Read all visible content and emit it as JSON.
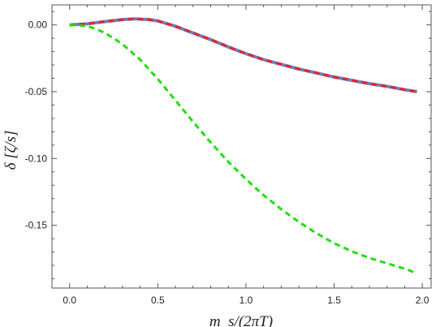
{
  "chart_data": {
    "type": "line",
    "title": "",
    "xlabel": "m_s/(2πT)",
    "ylabel": "δ [ζ/s]",
    "xlim": [
      -0.1,
      2.05
    ],
    "ylim": [
      -0.197,
      0.015
    ],
    "x_ticks": [
      0.0,
      0.5,
      1.0,
      1.5,
      2.0
    ],
    "x_tick_labels": [
      "0.0",
      "0.5",
      "1.0",
      "1.5",
      "2.0"
    ],
    "y_ticks": [
      0.0,
      -0.05,
      -0.1,
      -0.15
    ],
    "y_tick_labels": [
      "0.00",
      "-0.05",
      "-0.10",
      "-0.15"
    ],
    "grid": false,
    "series": [
      {
        "style": "solid",
        "color": "#6f7fbf",
        "x": [
          0.0,
          0.1,
          0.2,
          0.3,
          0.37,
          0.45,
          0.5,
          0.6,
          0.7,
          0.8,
          0.9,
          1.0,
          1.1,
          1.2,
          1.3,
          1.4,
          1.5,
          1.6,
          1.7,
          1.8,
          1.9,
          1.97
        ],
        "y": [
          0.0,
          0.0008,
          0.0025,
          0.004,
          0.0045,
          0.004,
          0.003,
          -0.001,
          -0.006,
          -0.011,
          -0.0165,
          -0.0215,
          -0.026,
          -0.0295,
          -0.033,
          -0.036,
          -0.039,
          -0.0415,
          -0.044,
          -0.046,
          -0.0485,
          -0.05
        ]
      },
      {
        "style": "dashed",
        "color": "#e8232a",
        "x": [
          0.0,
          0.1,
          0.2,
          0.3,
          0.37,
          0.45,
          0.5,
          0.6,
          0.7,
          0.8,
          0.9,
          1.0,
          1.1,
          1.2,
          1.3,
          1.4,
          1.5,
          1.6,
          1.7,
          1.8,
          1.9,
          1.97
        ],
        "y": [
          0.0,
          0.0008,
          0.0025,
          0.004,
          0.0045,
          0.004,
          0.003,
          -0.001,
          -0.006,
          -0.011,
          -0.0165,
          -0.0215,
          -0.026,
          -0.0295,
          -0.033,
          -0.036,
          -0.039,
          -0.0415,
          -0.044,
          -0.046,
          -0.0485,
          -0.05
        ]
      },
      {
        "style": "dashed",
        "color": "#22dd11",
        "x": [
          0.0,
          0.05,
          0.1,
          0.15,
          0.2,
          0.25,
          0.3,
          0.4,
          0.5,
          0.6,
          0.7,
          0.8,
          0.9,
          1.0,
          1.1,
          1.2,
          1.3,
          1.4,
          1.5,
          1.6,
          1.7,
          1.8,
          1.9,
          1.97
        ],
        "y": [
          0.0,
          -0.0003,
          -0.001,
          -0.003,
          -0.006,
          -0.01,
          -0.0145,
          -0.026,
          -0.0405,
          -0.0565,
          -0.0725,
          -0.088,
          -0.1025,
          -0.1155,
          -0.1275,
          -0.138,
          -0.1475,
          -0.156,
          -0.1635,
          -0.1695,
          -0.1745,
          -0.1785,
          -0.1825,
          -0.186
        ]
      }
    ]
  }
}
